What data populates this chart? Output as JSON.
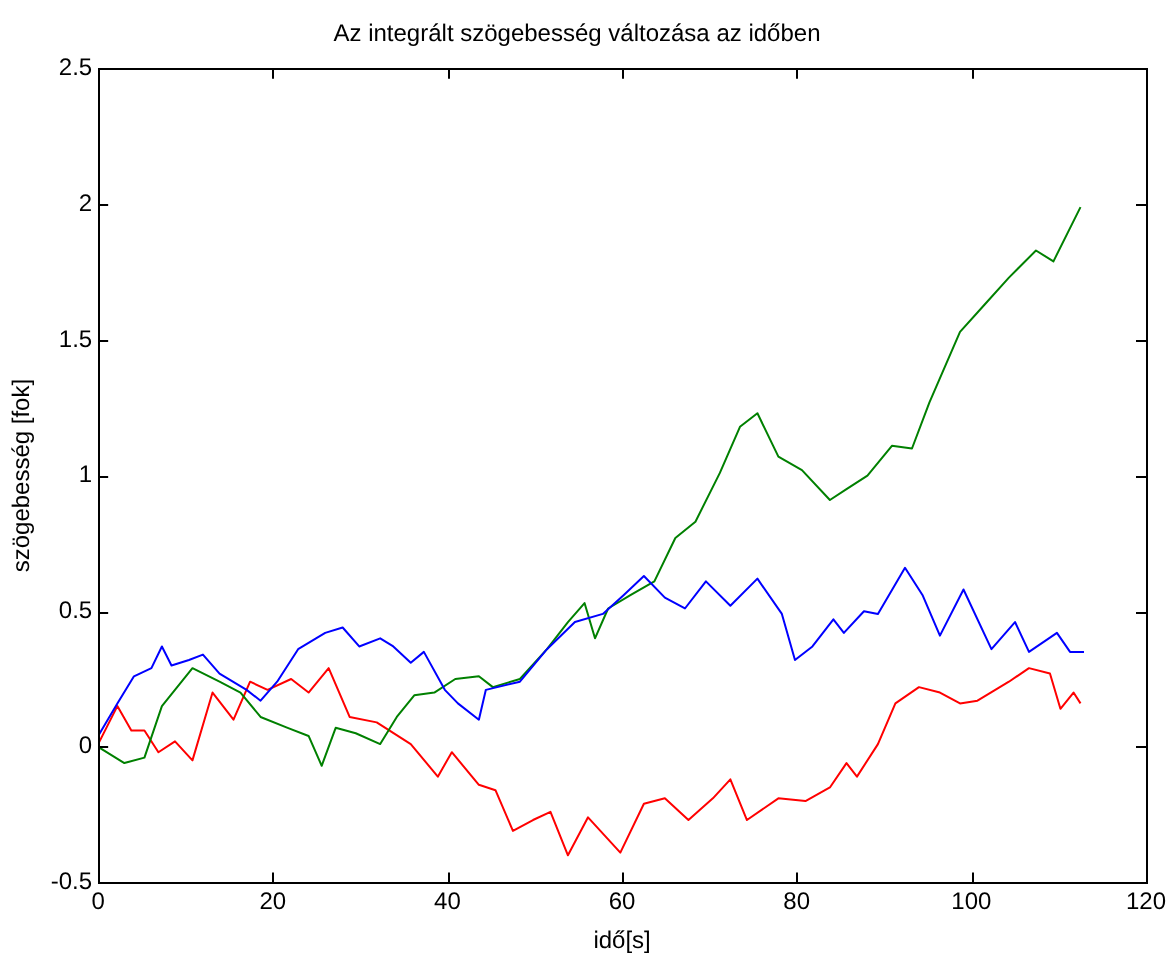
{
  "chart_data": {
    "type": "line",
    "title": "Az integrált szögebesség változása az időben",
    "xlabel": "idő[s]",
    "ylabel": "szögebesség [fok]",
    "xlim": [
      0,
      120
    ],
    "xticks": [
      0,
      20,
      40,
      60,
      80,
      100,
      120
    ],
    "ylim": [
      -0.5,
      2.5
    ],
    "yticks": [
      -0.5,
      0,
      0.5,
      1,
      1.5,
      2,
      2.5
    ],
    "grid": false,
    "legend": false,
    "marker": "none",
    "line_style": "solid",
    "series": [
      {
        "color": "#0000ff",
        "x": [
          0,
          2.2,
          4.1,
          6.1,
          7.3,
          8.4,
          10.4,
          12,
          13.9,
          17,
          18.6,
          20.5,
          22.9,
          26,
          28,
          29.9,
          32.3,
          33.8,
          35.8,
          37.3,
          39.7,
          41.2,
          43.6,
          44.4,
          48.3,
          51.4,
          54.6,
          57.8,
          60.2,
          62.5,
          64.9,
          67.2,
          69.6,
          72.4,
          75.5,
          78.3,
          79.8,
          81.8,
          84.2,
          85.4,
          87.7,
          89.3,
          92.4,
          94.4,
          96.4,
          99.1,
          102.3,
          105,
          106.6,
          109.8,
          111.3,
          112.9
        ],
        "values": [
          0.04,
          0.16,
          0.26,
          0.29,
          0.37,
          0.3,
          0.32,
          0.34,
          0.27,
          0.21,
          0.17,
          0.24,
          0.36,
          0.42,
          0.44,
          0.37,
          0.4,
          0.37,
          0.31,
          0.35,
          0.21,
          0.16,
          0.1,
          0.21,
          0.24,
          0.36,
          0.46,
          0.49,
          0.56,
          0.63,
          0.55,
          0.51,
          0.61,
          0.52,
          0.62,
          0.49,
          0.32,
          0.37,
          0.47,
          0.42,
          0.5,
          0.49,
          0.66,
          0.56,
          0.41,
          0.58,
          0.36,
          0.46,
          0.35,
          0.42,
          0.35,
          0.35
        ]
      },
      {
        "color": "#008000",
        "x": [
          0,
          3,
          5.3,
          7.3,
          10.8,
          13.9,
          16.3,
          18.6,
          21.7,
          24.1,
          25.6,
          27.2,
          29.5,
          32.3,
          34.2,
          36.2,
          38.5,
          40.9,
          43.6,
          45.2,
          48.3,
          51.4,
          53.8,
          55.7,
          56.9,
          58.4,
          61,
          63.7,
          66.1,
          68.4,
          71.2,
          73.5,
          75.5,
          77.9,
          80.6,
          83.8,
          85.7,
          88.1,
          90.9,
          93.2,
          95.2,
          98.7,
          101.5,
          104.3,
          107.4,
          109.4,
          112.5
        ],
        "values": [
          0,
          -0.06,
          -0.04,
          0.15,
          0.29,
          0.24,
          0.2,
          0.11,
          0.07,
          0.04,
          -0.07,
          0.07,
          0.05,
          0.01,
          0.11,
          0.19,
          0.2,
          0.25,
          0.26,
          0.22,
          0.25,
          0.36,
          0.46,
          0.53,
          0.4,
          0.51,
          0.56,
          0.61,
          0.77,
          0.83,
          1.01,
          1.18,
          1.23,
          1.07,
          1.02,
          0.91,
          0.95,
          1,
          1.11,
          1.1,
          1.27,
          1.53,
          1.63,
          1.73,
          1.83,
          1.79,
          1.99
        ]
      },
      {
        "color": "#ff0000",
        "x": [
          0,
          2.2,
          3.8,
          5.3,
          6.9,
          8.8,
          10.8,
          13.1,
          15.5,
          17.4,
          19.4,
          22.1,
          24.1,
          26.4,
          28.8,
          31.9,
          35.8,
          38.9,
          40.5,
          43.6,
          45.5,
          47.5,
          49.8,
          51.8,
          53.8,
          56.1,
          59.8,
          62.5,
          64.9,
          67.6,
          70.4,
          72.4,
          74.3,
          77.9,
          81,
          83.8,
          85.7,
          86.9,
          89.3,
          91.3,
          94,
          96.4,
          98.7,
          100.7,
          104.3,
          106.6,
          109,
          110.2,
          111.7,
          112.5
        ],
        "values": [
          0.01,
          0.15,
          0.06,
          0.06,
          -0.02,
          0.02,
          -0.05,
          0.2,
          0.1,
          0.24,
          0.21,
          0.25,
          0.2,
          0.29,
          0.11,
          0.09,
          0.01,
          -0.11,
          -0.02,
          -0.14,
          -0.16,
          -0.31,
          -0.27,
          -0.24,
          -0.4,
          -0.26,
          -0.39,
          -0.21,
          -0.19,
          -0.27,
          -0.19,
          -0.12,
          -0.27,
          -0.19,
          -0.2,
          -0.15,
          -0.06,
          -0.11,
          0.01,
          0.16,
          0.22,
          0.2,
          0.16,
          0.17,
          0.24,
          0.29,
          0.27,
          0.14,
          0.2,
          0.16
        ]
      }
    ]
  }
}
